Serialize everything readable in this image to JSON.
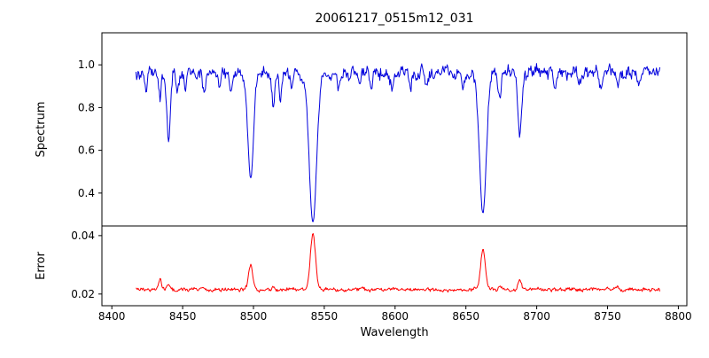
{
  "colors": {
    "background": "#ffffff",
    "axis": "#000000",
    "spectrum_line": "#0000dd",
    "error_line": "#ff0000"
  },
  "chart_data": {
    "type": "line",
    "title": "20061217_0515m12_031",
    "xlabel": "Wavelength",
    "grid": false,
    "legend": false,
    "x_range": [
      8417,
      8787
    ],
    "xlim": [
      8393,
      8806
    ],
    "x_ticks": [
      {
        "v": 8400,
        "label": "8400"
      },
      {
        "v": 8450,
        "label": "8450"
      },
      {
        "v": 8500,
        "label": "8500"
      },
      {
        "v": 8550,
        "label": "8550"
      },
      {
        "v": 8600,
        "label": "8600"
      },
      {
        "v": 8650,
        "label": "8650"
      },
      {
        "v": 8700,
        "label": "8700"
      },
      {
        "v": 8750,
        "label": "8750"
      },
      {
        "v": 8800,
        "label": "8800"
      }
    ],
    "panels": [
      {
        "name": "spectrum",
        "ylabel": "Spectrum",
        "ylim": [
          0.246,
          1.15
        ],
        "y_ticks": [
          {
            "v": 0.4,
            "label": "0.4"
          },
          {
            "v": 0.6,
            "label": "0.6"
          },
          {
            "v": 0.8,
            "label": "0.8"
          },
          {
            "v": 1.0,
            "label": "1.0"
          }
        ],
        "line_color": "#0000dd",
        "continuum": 0.965,
        "noise_rel": 0.022,
        "absorption_lines": [
          {
            "center": 8424,
            "depth": 0.09,
            "width": 1.0
          },
          {
            "center": 8434,
            "depth": 0.13,
            "width": 1.0
          },
          {
            "center": 8440,
            "depth": 0.31,
            "width": 1.3
          },
          {
            "center": 8446,
            "depth": 0.09,
            "width": 0.9
          },
          {
            "center": 8452,
            "depth": 0.08,
            "width": 0.9
          },
          {
            "center": 8465,
            "depth": 0.1,
            "width": 1.0
          },
          {
            "center": 8476,
            "depth": 0.07,
            "width": 0.9
          },
          {
            "center": 8484,
            "depth": 0.06,
            "width": 0.9
          },
          {
            "center": 8498,
            "depth": 0.5,
            "width": 2.0
          },
          {
            "center": 8514,
            "depth": 0.16,
            "width": 1.1
          },
          {
            "center": 8519,
            "depth": 0.13,
            "width": 1.0
          },
          {
            "center": 8527,
            "depth": 0.08,
            "width": 0.9
          },
          {
            "center": 8542,
            "depth": 0.7,
            "width": 2.6
          },
          {
            "center": 8560,
            "depth": 0.06,
            "width": 0.9
          },
          {
            "center": 8575,
            "depth": 0.06,
            "width": 0.9
          },
          {
            "center": 8583,
            "depth": 0.08,
            "width": 0.9
          },
          {
            "center": 8598,
            "depth": 0.07,
            "width": 0.9
          },
          {
            "center": 8611,
            "depth": 0.07,
            "width": 0.9
          },
          {
            "center": 8622,
            "depth": 0.08,
            "width": 0.9
          },
          {
            "center": 8648,
            "depth": 0.07,
            "width": 0.9
          },
          {
            "center": 8662,
            "depth": 0.66,
            "width": 2.4
          },
          {
            "center": 8674,
            "depth": 0.13,
            "width": 1.0
          },
          {
            "center": 8688,
            "depth": 0.3,
            "width": 1.4
          },
          {
            "center": 8713,
            "depth": 0.08,
            "width": 0.9
          },
          {
            "center": 8730,
            "depth": 0.06,
            "width": 0.9
          },
          {
            "center": 8745,
            "depth": 0.07,
            "width": 0.9
          },
          {
            "center": 8757,
            "depth": 0.08,
            "width": 0.9
          },
          {
            "center": 8772,
            "depth": 0.06,
            "width": 0.9
          }
        ]
      },
      {
        "name": "error",
        "ylabel": "Error",
        "ylim": [
          0.016,
          0.0433
        ],
        "y_ticks": [
          {
            "v": 0.02,
            "label": "0.02"
          },
          {
            "v": 0.04,
            "label": "0.04"
          }
        ],
        "line_color": "#ff0000",
        "baseline": 0.0215,
        "noise_abs": 0.00045,
        "peaks": [
          {
            "center": 8434,
            "height": 0.0035,
            "width": 1.2
          },
          {
            "center": 8440,
            "height": 0.0015,
            "width": 1.2
          },
          {
            "center": 8465,
            "height": 0.0008,
            "width": 1.0
          },
          {
            "center": 8498,
            "height": 0.0085,
            "width": 1.5
          },
          {
            "center": 8514,
            "height": 0.0013,
            "width": 1.0
          },
          {
            "center": 8542,
            "height": 0.0195,
            "width": 1.8
          },
          {
            "center": 8662,
            "height": 0.0135,
            "width": 1.7
          },
          {
            "center": 8674,
            "height": 0.0012,
            "width": 1.0
          },
          {
            "center": 8688,
            "height": 0.0035,
            "width": 1.2
          },
          {
            "center": 8757,
            "height": 0.001,
            "width": 1.0
          }
        ]
      }
    ]
  }
}
